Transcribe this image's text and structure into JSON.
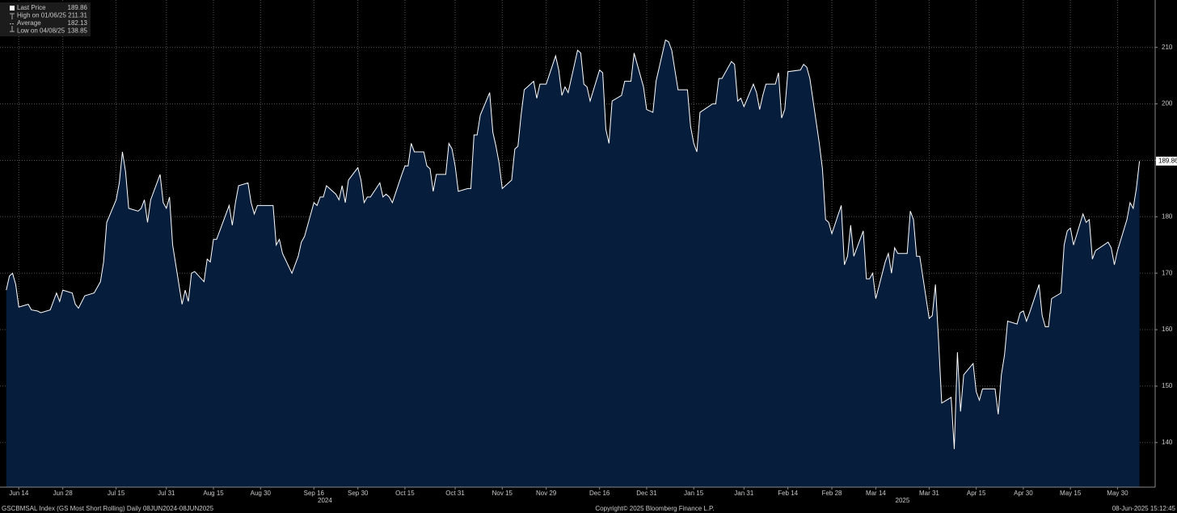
{
  "chart_data": {
    "type": "area",
    "x": [
      "2024-06-10",
      "2024-06-11",
      "2024-06-12",
      "2024-06-13",
      "2024-06-14",
      "2024-06-17",
      "2024-06-18",
      "2024-06-20",
      "2024-06-21",
      "2024-06-24",
      "2024-06-25",
      "2024-06-26",
      "2024-06-27",
      "2024-06-28",
      "2024-07-01",
      "2024-07-02",
      "2024-07-03",
      "2024-07-05",
      "2024-07-08",
      "2024-07-09",
      "2024-07-10",
      "2024-07-11",
      "2024-07-12",
      "2024-07-15",
      "2024-07-16",
      "2024-07-17",
      "2024-07-18",
      "2024-07-19",
      "2024-07-22",
      "2024-07-23",
      "2024-07-24",
      "2024-07-25",
      "2024-07-26",
      "2024-07-29",
      "2024-07-30",
      "2024-07-31",
      "2024-08-01",
      "2024-08-02",
      "2024-08-05",
      "2024-08-06",
      "2024-08-07",
      "2024-08-08",
      "2024-08-09",
      "2024-08-12",
      "2024-08-13",
      "2024-08-14",
      "2024-08-15",
      "2024-08-16",
      "2024-08-19",
      "2024-08-20",
      "2024-08-21",
      "2024-08-22",
      "2024-08-23",
      "2024-08-26",
      "2024-08-27",
      "2024-08-28",
      "2024-08-29",
      "2024-08-30",
      "2024-09-03",
      "2024-09-04",
      "2024-09-05",
      "2024-09-06",
      "2024-09-09",
      "2024-09-10",
      "2024-09-11",
      "2024-09-12",
      "2024-09-13",
      "2024-09-16",
      "2024-09-17",
      "2024-09-18",
      "2024-09-19",
      "2024-09-20",
      "2024-09-23",
      "2024-09-24",
      "2024-09-25",
      "2024-09-26",
      "2024-09-27",
      "2024-09-30",
      "2024-10-01",
      "2024-10-02",
      "2024-10-03",
      "2024-10-04",
      "2024-10-07",
      "2024-10-08",
      "2024-10-09",
      "2024-10-10",
      "2024-10-11",
      "2024-10-14",
      "2024-10-15",
      "2024-10-16",
      "2024-10-17",
      "2024-10-18",
      "2024-10-21",
      "2024-10-22",
      "2024-10-23",
      "2024-10-24",
      "2024-10-25",
      "2024-10-28",
      "2024-10-29",
      "2024-10-30",
      "2024-10-31",
      "2024-11-01",
      "2024-11-04",
      "2024-11-05",
      "2024-11-06",
      "2024-11-07",
      "2024-11-08",
      "2024-11-11",
      "2024-11-12",
      "2024-11-13",
      "2024-11-14",
      "2024-11-15",
      "2024-11-18",
      "2024-11-19",
      "2024-11-20",
      "2024-11-21",
      "2024-11-22",
      "2024-11-25",
      "2024-11-26",
      "2024-11-27",
      "2024-11-29",
      "2024-12-02",
      "2024-12-03",
      "2024-12-04",
      "2024-12-05",
      "2024-12-06",
      "2024-12-09",
      "2024-12-10",
      "2024-12-11",
      "2024-12-12",
      "2024-12-13",
      "2024-12-16",
      "2024-12-17",
      "2024-12-18",
      "2024-12-19",
      "2024-12-20",
      "2024-12-23",
      "2024-12-24",
      "2024-12-26",
      "2024-12-27",
      "2024-12-30",
      "2024-12-31",
      "2025-01-02",
      "2025-01-03",
      "2025-01-06",
      "2025-01-07",
      "2025-01-08",
      "2025-01-10",
      "2025-01-13",
      "2025-01-14",
      "2025-01-15",
      "2025-01-16",
      "2025-01-17",
      "2025-01-21",
      "2025-01-22",
      "2025-01-23",
      "2025-01-24",
      "2025-01-27",
      "2025-01-28",
      "2025-01-29",
      "2025-01-30",
      "2025-01-31",
      "2025-02-03",
      "2025-02-04",
      "2025-02-05",
      "2025-02-06",
      "2025-02-07",
      "2025-02-10",
      "2025-02-11",
      "2025-02-12",
      "2025-02-13",
      "2025-02-14",
      "2025-02-18",
      "2025-02-19",
      "2025-02-20",
      "2025-02-21",
      "2025-02-24",
      "2025-02-25",
      "2025-02-26",
      "2025-02-27",
      "2025-02-28",
      "2025-03-03",
      "2025-03-04",
      "2025-03-05",
      "2025-03-06",
      "2025-03-07",
      "2025-03-10",
      "2025-03-11",
      "2025-03-12",
      "2025-03-13",
      "2025-03-14",
      "2025-03-17",
      "2025-03-18",
      "2025-03-19",
      "2025-03-20",
      "2025-03-21",
      "2025-03-24",
      "2025-03-25",
      "2025-03-26",
      "2025-03-27",
      "2025-03-28",
      "2025-03-31",
      "2025-04-01",
      "2025-04-02",
      "2025-04-03",
      "2025-04-04",
      "2025-04-07",
      "2025-04-08",
      "2025-04-09",
      "2025-04-10",
      "2025-04-11",
      "2025-04-14",
      "2025-04-15",
      "2025-04-16",
      "2025-04-17",
      "2025-04-21",
      "2025-04-22",
      "2025-04-23",
      "2025-04-24",
      "2025-04-25",
      "2025-04-28",
      "2025-04-29",
      "2025-04-30",
      "2025-05-01",
      "2025-05-02",
      "2025-05-05",
      "2025-05-06",
      "2025-05-07",
      "2025-05-08",
      "2025-05-09",
      "2025-05-12",
      "2025-05-13",
      "2025-05-14",
      "2025-05-15",
      "2025-05-16",
      "2025-05-19",
      "2025-05-20",
      "2025-05-21",
      "2025-05-22",
      "2025-05-23",
      "2025-05-27",
      "2025-05-28",
      "2025-05-29",
      "2025-05-30",
      "2025-06-02",
      "2025-06-03",
      "2025-06-04",
      "2025-06-05",
      "2025-06-06"
    ],
    "values": [
      167,
      169.5,
      170,
      168,
      164,
      164.5,
      163.5,
      163.3,
      163,
      163.5,
      165,
      166.5,
      165,
      167,
      166.5,
      164.5,
      163.8,
      166,
      166.5,
      167.5,
      168.5,
      172,
      179,
      183,
      186,
      191.5,
      188,
      181.5,
      181,
      181.5,
      183,
      179,
      183,
      187.5,
      182.5,
      181.5,
      183.5,
      175,
      164.5,
      167,
      165,
      170,
      170.3,
      168.5,
      172.5,
      172,
      176,
      176,
      180.5,
      182,
      178.5,
      182.5,
      185.5,
      186,
      182.5,
      180.5,
      182,
      182,
      182,
      175,
      176,
      173.5,
      170,
      171.5,
      173,
      175.5,
      176.5,
      182.5,
      182,
      183.5,
      183.5,
      185.5,
      184,
      183,
      185.5,
      182.5,
      186.5,
      188.7,
      186.5,
      182.5,
      183.5,
      183.5,
      186,
      183.5,
      184,
      183.5,
      182.5,
      187.5,
      189,
      189,
      193,
      191.5,
      191.5,
      189,
      188.5,
      184.5,
      187.5,
      187.5,
      193,
      192,
      189,
      184.5,
      185,
      185,
      194.5,
      194.5,
      198,
      202,
      195,
      192.5,
      189.5,
      185,
      186.5,
      192,
      192.5,
      198,
      202.5,
      204,
      201,
      203.5,
      203.5,
      208.5,
      206,
      201.5,
      203,
      202,
      209.5,
      209,
      203.5,
      203,
      200.5,
      206,
      205.5,
      195.5,
      193,
      200.5,
      201.5,
      204,
      204,
      209,
      203,
      199,
      198.5,
      204,
      211.31,
      211,
      209.5,
      202.5,
      202.5,
      196,
      193,
      191.5,
      198.5,
      200,
      200,
      204.5,
      204.5,
      207.5,
      207,
      200.5,
      201,
      199.5,
      203.5,
      202,
      199,
      201.5,
      203.5,
      203.5,
      205.5,
      197.5,
      199,
      205.7,
      206,
      207,
      206.5,
      204.5,
      193,
      188.5,
      179.5,
      179,
      177,
      182,
      171.5,
      173,
      178.5,
      173,
      177.5,
      169,
      169,
      170,
      165.5,
      172,
      173.5,
      170,
      174.5,
      173.5,
      173.5,
      181,
      179.5,
      173,
      173,
      162,
      162.5,
      168,
      158,
      147,
      148,
      138.85,
      156,
      145.5,
      152,
      154,
      149,
      147.5,
      149.5,
      149.5,
      145,
      152,
      155.5,
      161.5,
      161,
      163,
      163.3,
      161.5,
      163,
      168,
      162.5,
      160.5,
      160.5,
      165.5,
      166.5,
      175,
      177.5,
      178,
      175,
      180.5,
      179,
      179.5,
      172.5,
      174,
      175.5,
      174.5,
      171.5,
      174,
      179.5,
      182.5,
      181.5,
      185,
      189.86
    ],
    "color": "#ffffff",
    "fill": "#061d3c",
    "grid": true,
    "xlim": [
      "2024-06-08",
      "2025-06-11"
    ],
    "xticks": [
      {
        "value": "2024-06-14",
        "label": "Jun 14"
      },
      {
        "value": "2024-06-28",
        "label": "Jun 28"
      },
      {
        "value": "2024-07-15",
        "label": "Jul 15"
      },
      {
        "value": "2024-07-31",
        "label": "Jul 31"
      },
      {
        "value": "2024-08-15",
        "label": "Aug 15"
      },
      {
        "value": "2024-08-30",
        "label": "Aug 30"
      },
      {
        "value": "2024-09-16",
        "label": "Sep 16"
      },
      {
        "value": "2024-09-30",
        "label": "Sep 30"
      },
      {
        "value": "2024-10-15",
        "label": "Oct 15"
      },
      {
        "value": "2024-10-31",
        "label": "Oct 31"
      },
      {
        "value": "2024-11-15",
        "label": "Nov 15"
      },
      {
        "value": "2024-11-29",
        "label": "Nov 29"
      },
      {
        "value": "2024-12-16",
        "label": "Dec 16"
      },
      {
        "value": "2024-12-31",
        "label": "Dec 31"
      },
      {
        "value": "2025-01-15",
        "label": "Jan 15"
      },
      {
        "value": "2025-01-31",
        "label": "Jan 31"
      },
      {
        "value": "2025-02-14",
        "label": "Feb 14"
      },
      {
        "value": "2025-02-28",
        "label": "Feb 28"
      },
      {
        "value": "2025-03-14",
        "label": "Mar 14"
      },
      {
        "value": "2025-03-31",
        "label": "Mar 31"
      },
      {
        "value": "2025-04-15",
        "label": "Apr 15"
      },
      {
        "value": "2025-04-30",
        "label": "Apr 30"
      },
      {
        "value": "2025-05-15",
        "label": "May 15"
      },
      {
        "value": "2025-05-30",
        "label": "May 30"
      }
    ],
    "year_labels": [
      "2024",
      "2025"
    ],
    "ylim": [
      132.1,
      218.4
    ],
    "yticks": [
      140,
      150,
      160,
      170,
      180,
      190,
      200,
      210
    ],
    "legend": [
      {
        "name": "Last Price",
        "value": 189.86
      },
      {
        "name": "High on 01/06/25",
        "value": 211.31
      },
      {
        "name": "Average",
        "value": 182.13
      },
      {
        "name": "Low on 04/08/25",
        "value": 138.85
      }
    ],
    "footer_left": "GSCBMSAL Index (GS Most Short Rolling)  Daily 08JUN2024-08JUN2025",
    "footer_center": "Copyright© 2025 Bloomberg Finance L.P.",
    "footer_right": "08-Jun-2025 15:12:45"
  }
}
